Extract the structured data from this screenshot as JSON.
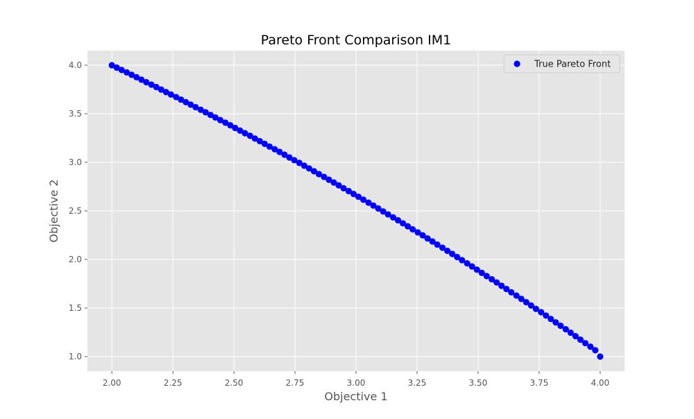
{
  "chart_data": {
    "type": "scatter",
    "title": "Pareto Front Comparison IM1",
    "xlabel": "Objective 1",
    "ylabel": "Objective 2",
    "xlim": [
      1.9,
      4.1
    ],
    "ylim": [
      0.85,
      4.15
    ],
    "xticks": [
      2.0,
      2.25,
      2.5,
      2.75,
      3.0,
      3.25,
      3.5,
      3.75,
      4.0
    ],
    "xtick_labels": [
      "2.00",
      "2.25",
      "2.50",
      "2.75",
      "3.00",
      "3.25",
      "3.50",
      "3.75",
      "4.00"
    ],
    "yticks": [
      1.0,
      1.5,
      2.0,
      2.5,
      3.0,
      3.5,
      4.0
    ],
    "ytick_labels": [
      "1.0",
      "1.5",
      "2.0",
      "2.5",
      "3.0",
      "3.5",
      "4.0"
    ],
    "grid": true,
    "legend_position": "top-right",
    "style": {
      "background": "#e5e5e5",
      "grid_color": "#ffffff",
      "marker_color": "#0000ff",
      "text_color": "#555555"
    },
    "series": [
      {
        "name": "True Pareto Front",
        "color": "#0000ff",
        "marker": "circle",
        "x": [
          2.0,
          2.02,
          2.04,
          2.061,
          2.081,
          2.101,
          2.121,
          2.141,
          2.162,
          2.182,
          2.202,
          2.222,
          2.242,
          2.263,
          2.283,
          2.303,
          2.323,
          2.343,
          2.364,
          2.384,
          2.404,
          2.424,
          2.444,
          2.465,
          2.485,
          2.505,
          2.525,
          2.545,
          2.566,
          2.586,
          2.606,
          2.626,
          2.646,
          2.667,
          2.687,
          2.707,
          2.727,
          2.747,
          2.768,
          2.788,
          2.808,
          2.828,
          2.848,
          2.869,
          2.889,
          2.909,
          2.929,
          2.949,
          2.97,
          2.99,
          3.01,
          3.03,
          3.051,
          3.071,
          3.091,
          3.111,
          3.131,
          3.152,
          3.172,
          3.192,
          3.212,
          3.232,
          3.253,
          3.273,
          3.293,
          3.313,
          3.333,
          3.354,
          3.374,
          3.394,
          3.414,
          3.434,
          3.455,
          3.475,
          3.495,
          3.515,
          3.535,
          3.556,
          3.576,
          3.596,
          3.616,
          3.636,
          3.657,
          3.677,
          3.697,
          3.717,
          3.737,
          3.758,
          3.778,
          3.798,
          3.818,
          3.838,
          3.859,
          3.879,
          3.899,
          3.919,
          3.939,
          3.96,
          3.98,
          4.0
        ],
        "y": [
          4.0,
          3.975,
          3.951,
          3.926,
          3.901,
          3.876,
          3.851,
          3.825,
          3.8,
          3.775,
          3.749,
          3.723,
          3.698,
          3.672,
          3.646,
          3.62,
          3.594,
          3.568,
          3.541,
          3.515,
          3.488,
          3.462,
          3.435,
          3.408,
          3.381,
          3.354,
          3.327,
          3.3,
          3.273,
          3.245,
          3.218,
          3.19,
          3.162,
          3.135,
          3.107,
          3.079,
          3.05,
          3.022,
          2.994,
          2.965,
          2.937,
          2.908,
          2.879,
          2.85,
          2.821,
          2.792,
          2.763,
          2.733,
          2.704,
          2.674,
          2.645,
          2.615,
          2.585,
          2.555,
          2.525,
          2.494,
          2.464,
          2.433,
          2.403,
          2.372,
          2.341,
          2.31,
          2.279,
          2.248,
          2.216,
          2.185,
          2.153,
          2.121,
          2.089,
          2.057,
          2.025,
          1.993,
          1.96,
          1.928,
          1.895,
          1.862,
          1.829,
          1.796,
          1.763,
          1.729,
          1.696,
          1.662,
          1.628,
          1.594,
          1.56,
          1.526,
          1.491,
          1.457,
          1.422,
          1.387,
          1.352,
          1.317,
          1.281,
          1.246,
          1.21,
          1.174,
          1.138,
          1.102,
          1.065,
          1.0
        ]
      }
    ]
  }
}
